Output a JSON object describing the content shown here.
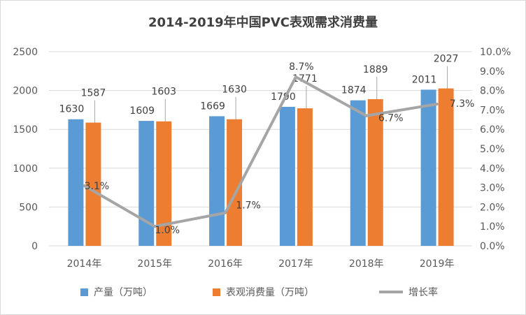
{
  "chart_data": {
    "type": "bar",
    "title": "2014-2019年中国PVC表观需求消费量",
    "categories": [
      "2014年",
      "2015年",
      "2016年",
      "2017年",
      "2018年",
      "2019年"
    ],
    "series": [
      {
        "name": "产量（万吨）",
        "type": "bar",
        "axis": "left",
        "color": "#5b9bd5",
        "values": [
          1630,
          1609,
          1669,
          1790,
          1874,
          2011
        ]
      },
      {
        "name": "表观消费量（万吨）",
        "type": "bar",
        "axis": "left",
        "color": "#ed7d31",
        "values": [
          1587,
          1603,
          1630,
          1771,
          1889,
          2027
        ]
      },
      {
        "name": "增长率",
        "type": "line",
        "axis": "right",
        "color": "#a5a5a5",
        "values": [
          3.1,
          1.0,
          1.7,
          8.7,
          6.7,
          7.3
        ],
        "labels": [
          "3.1%",
          "1.0%",
          "1.7%",
          "8.7%",
          "6.7%",
          "7.3%"
        ]
      }
    ],
    "left_axis": {
      "ylim": [
        0,
        2500
      ],
      "ticks": [
        "0",
        "500",
        "1000",
        "1500",
        "2000",
        "2500"
      ]
    },
    "right_axis": {
      "ylim": [
        0,
        10
      ],
      "ticks": [
        "0.0%",
        "1.0%",
        "2.0%",
        "3.0%",
        "4.0%",
        "5.0%",
        "6.0%",
        "7.0%",
        "8.0%",
        "9.0%",
        "10.0%"
      ]
    },
    "grid": true,
    "legend": "bottom"
  }
}
